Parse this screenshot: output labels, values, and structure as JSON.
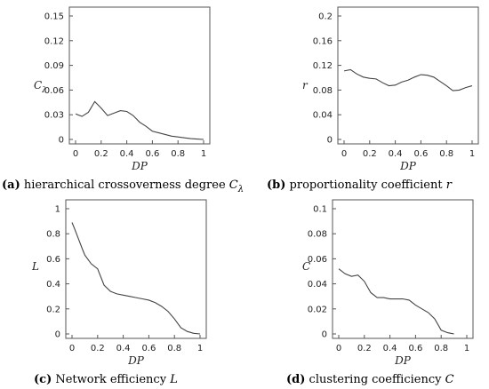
{
  "chart_data": [
    {
      "type": "line",
      "panel_tag": "(a)",
      "caption_text": "hierarchical crossoverness degree",
      "caption_symbol": "C",
      "caption_subscript": "λ",
      "xlabel": "DP",
      "ylabel": "C",
      "ylabel_subscript": "λ",
      "xlim": [
        0,
        1
      ],
      "ylim": [
        0,
        0.15
      ],
      "xticks": [
        "0",
        "0.2",
        "0.4",
        "0.6",
        "0.8",
        "1"
      ],
      "yticks": [
        "0",
        "0.03",
        "0.06",
        "0.09",
        "0.12",
        "0.15"
      ],
      "x": [
        0,
        0.05,
        0.1,
        0.15,
        0.2,
        0.25,
        0.3,
        0.35,
        0.4,
        0.45,
        0.5,
        0.55,
        0.6,
        0.65,
        0.7,
        0.75,
        0.8,
        0.85,
        0.9,
        0.95,
        1.0
      ],
      "y": [
        0.031,
        0.028,
        0.033,
        0.046,
        0.038,
        0.029,
        0.032,
        0.035,
        0.034,
        0.029,
        0.021,
        0.016,
        0.01,
        0.008,
        0.006,
        0.004,
        0.003,
        0.002,
        0.001,
        0.0005,
        0.0
      ]
    },
    {
      "type": "line",
      "panel_tag": "(b)",
      "caption_text": "proportionality coefficient",
      "caption_symbol": "r",
      "caption_subscript": "",
      "xlabel": "DP",
      "ylabel": "r",
      "ylabel_subscript": "",
      "xlim": [
        0,
        1
      ],
      "ylim": [
        0,
        0.2
      ],
      "xticks": [
        "0",
        "0.2",
        "0.4",
        "0.6",
        "0.8",
        "1"
      ],
      "yticks": [
        "0",
        "0.04",
        "0.08",
        "0.12",
        "0.16",
        "0.2"
      ],
      "x": [
        0,
        0.05,
        0.1,
        0.15,
        0.2,
        0.25,
        0.3,
        0.35,
        0.4,
        0.45,
        0.5,
        0.55,
        0.6,
        0.65,
        0.7,
        0.75,
        0.8,
        0.85,
        0.9,
        0.95,
        1.0
      ],
      "y": [
        0.111,
        0.113,
        0.106,
        0.101,
        0.099,
        0.098,
        0.092,
        0.087,
        0.088,
        0.093,
        0.096,
        0.101,
        0.105,
        0.104,
        0.101,
        0.094,
        0.087,
        0.079,
        0.08,
        0.084,
        0.087
      ]
    },
    {
      "type": "line",
      "panel_tag": "(c)",
      "caption_text": "Network efficiency",
      "caption_symbol": "L",
      "caption_subscript": "",
      "xlabel": "DP",
      "ylabel": "L",
      "ylabel_subscript": "",
      "xlim": [
        0,
        1
      ],
      "ylim": [
        0,
        1
      ],
      "xticks": [
        "0",
        "0.2",
        "0.4",
        "0.6",
        "0.8",
        "1"
      ],
      "yticks": [
        "0",
        "0.2",
        "0.4",
        "0.6",
        "0.8",
        "1"
      ],
      "x": [
        0,
        0.02,
        0.05,
        0.08,
        0.1,
        0.15,
        0.2,
        0.25,
        0.3,
        0.35,
        0.4,
        0.45,
        0.5,
        0.55,
        0.6,
        0.65,
        0.7,
        0.75,
        0.8,
        0.85,
        0.9,
        0.95,
        1.0
      ],
      "y": [
        0.89,
        0.84,
        0.76,
        0.68,
        0.63,
        0.56,
        0.52,
        0.39,
        0.34,
        0.32,
        0.31,
        0.3,
        0.29,
        0.28,
        0.27,
        0.25,
        0.22,
        0.18,
        0.12,
        0.05,
        0.02,
        0.005,
        0.0
      ]
    },
    {
      "type": "line",
      "panel_tag": "(d)",
      "caption_text": "clustering coefficiency",
      "caption_symbol": "C",
      "caption_subscript": "",
      "xlabel": "DP",
      "ylabel": "C",
      "ylabel_subscript": "",
      "xlim": [
        0,
        1
      ],
      "ylim": [
        0,
        0.1
      ],
      "xticks": [
        "0",
        "0.2",
        "0.4",
        "0.6",
        "0.8",
        "1"
      ],
      "yticks": [
        "0",
        "0.02",
        "0.04",
        "0.06",
        "0.08",
        "0.1"
      ],
      "x": [
        0,
        0.05,
        0.1,
        0.15,
        0.2,
        0.25,
        0.3,
        0.35,
        0.4,
        0.45,
        0.5,
        0.55,
        0.6,
        0.65,
        0.7,
        0.75,
        0.8,
        0.85,
        0.9
      ],
      "y": [
        0.052,
        0.048,
        0.046,
        0.047,
        0.042,
        0.033,
        0.029,
        0.029,
        0.028,
        0.028,
        0.028,
        0.027,
        0.023,
        0.02,
        0.017,
        0.012,
        0.003,
        0.001,
        0.0
      ]
    }
  ]
}
